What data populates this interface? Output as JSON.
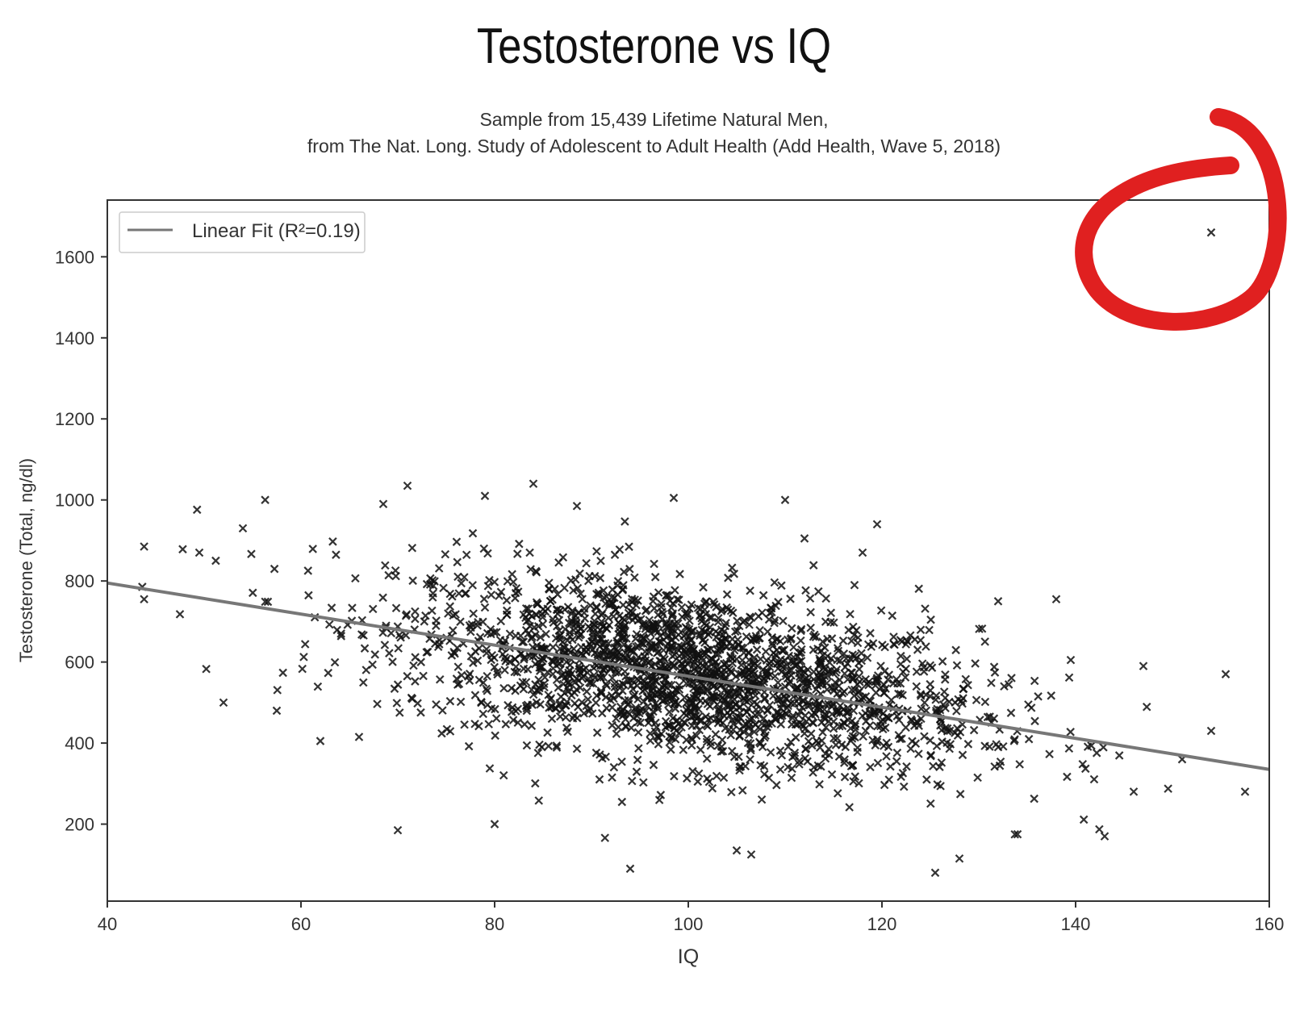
{
  "chart_data": {
    "type": "scatter",
    "title": "Testosterone vs IQ",
    "subtitle_lines": [
      "Sample from 15,439 Lifetime Natural Men,",
      "from The Nat. Long. Study of Adolescent to Adult Health (Add Health, Wave 5, 2018)"
    ],
    "xlabel": "IQ",
    "ylabel": "Testosterone (Total, ng/dl)",
    "xlim": [
      40,
      160
    ],
    "ylim": [
      10,
      1740
    ],
    "xticks": [
      40,
      60,
      80,
      100,
      120,
      140,
      160
    ],
    "yticks": [
      200,
      400,
      600,
      800,
      1000,
      1200,
      1400,
      1600
    ],
    "grid": false,
    "legend_position": "top-left",
    "series": [
      {
        "name": "Linear Fit (R²=0.19)",
        "kind": "line",
        "color": "#777777",
        "x": [
          40,
          160
        ],
        "y": [
          795,
          335
        ]
      },
      {
        "kind": "scatter",
        "marker": "x",
        "color": "#111111",
        "cluster": {
          "mean_iq": 100,
          "sd_iq": 15,
          "mean_testosterone": 570,
          "sd_testosterone": 120,
          "count_drawn": 2200
        },
        "outliers": {
          "x": [
            154,
            43.8,
            43.8,
            47.5,
            49.5,
            51.2,
            52,
            54,
            56.3,
            57.5,
            62,
            68.5,
            70,
            71,
            79,
            84,
            98.5,
            94,
            105,
            106.5,
            110,
            119.5,
            125.5,
            128,
            138,
            143,
            147,
            151,
            154,
            155.5,
            157.5,
            146,
            139.5,
            132,
            118,
            112,
            88.5,
            80
          ],
          "y": [
            1660,
            885,
            755,
            718,
            870,
            850,
            500,
            930,
            1000,
            480,
            405,
            990,
            185,
            1035,
            1010,
            1040,
            1005,
            90,
            135,
            125,
            1000,
            940,
            80,
            115,
            755,
            170,
            590,
            360,
            430,
            570,
            280,
            280,
            605,
            750,
            870,
            905,
            985,
            200
          ]
        }
      }
    ],
    "annotation": {
      "kind": "hand-drawn circle",
      "color": "#e02020",
      "target": [
        154,
        1660
      ]
    }
  }
}
